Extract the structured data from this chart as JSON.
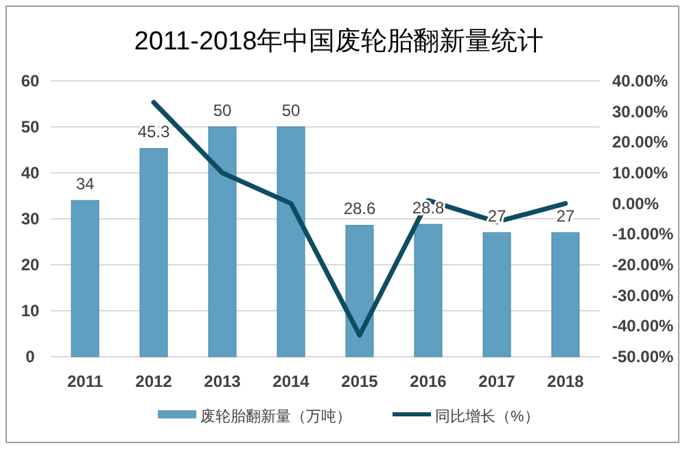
{
  "chart_data": {
    "type": "bar",
    "title": "2011-2018年中国废轮胎翻新量统计",
    "categories": [
      "2011",
      "2012",
      "2013",
      "2014",
      "2015",
      "2016",
      "2017",
      "2018"
    ],
    "series": [
      {
        "name": "废轮胎翻新量（万吨）",
        "color": "#5fa0c2",
        "values": [
          34,
          45.3,
          50,
          50,
          28.6,
          28.8,
          27,
          27
        ],
        "value_labels": [
          "34",
          "45.3",
          "50",
          "50",
          "28.6",
          "28.8",
          "27",
          "27"
        ]
      },
      {
        "name": "同比增长（%）",
        "type": "line",
        "axis": "y2",
        "color": "#0e4d61",
        "values": [
          null,
          33,
          10,
          0,
          -43,
          1,
          -6,
          0
        ]
      }
    ],
    "ylim": [
      0,
      60
    ],
    "yticks": [
      0,
      10,
      20,
      30,
      40,
      50,
      60
    ],
    "y2lim": [
      -50,
      40
    ],
    "y2ticks": [
      {
        "value": -50,
        "label": "-50.00%"
      },
      {
        "value": -40,
        "label": "-40.00%"
      },
      {
        "value": -30,
        "label": "-30.00%"
      },
      {
        "value": -20,
        "label": "-20.00%"
      },
      {
        "value": -10,
        "label": "-10.00%"
      },
      {
        "value": 0,
        "label": "0.00%"
      },
      {
        "value": 10,
        "label": "10.00%"
      },
      {
        "value": 20,
        "label": "20.00%"
      },
      {
        "value": 30,
        "label": "30.00%"
      },
      {
        "value": 40,
        "label": "40.00%"
      }
    ],
    "grid": "y",
    "legend": "bottom"
  }
}
